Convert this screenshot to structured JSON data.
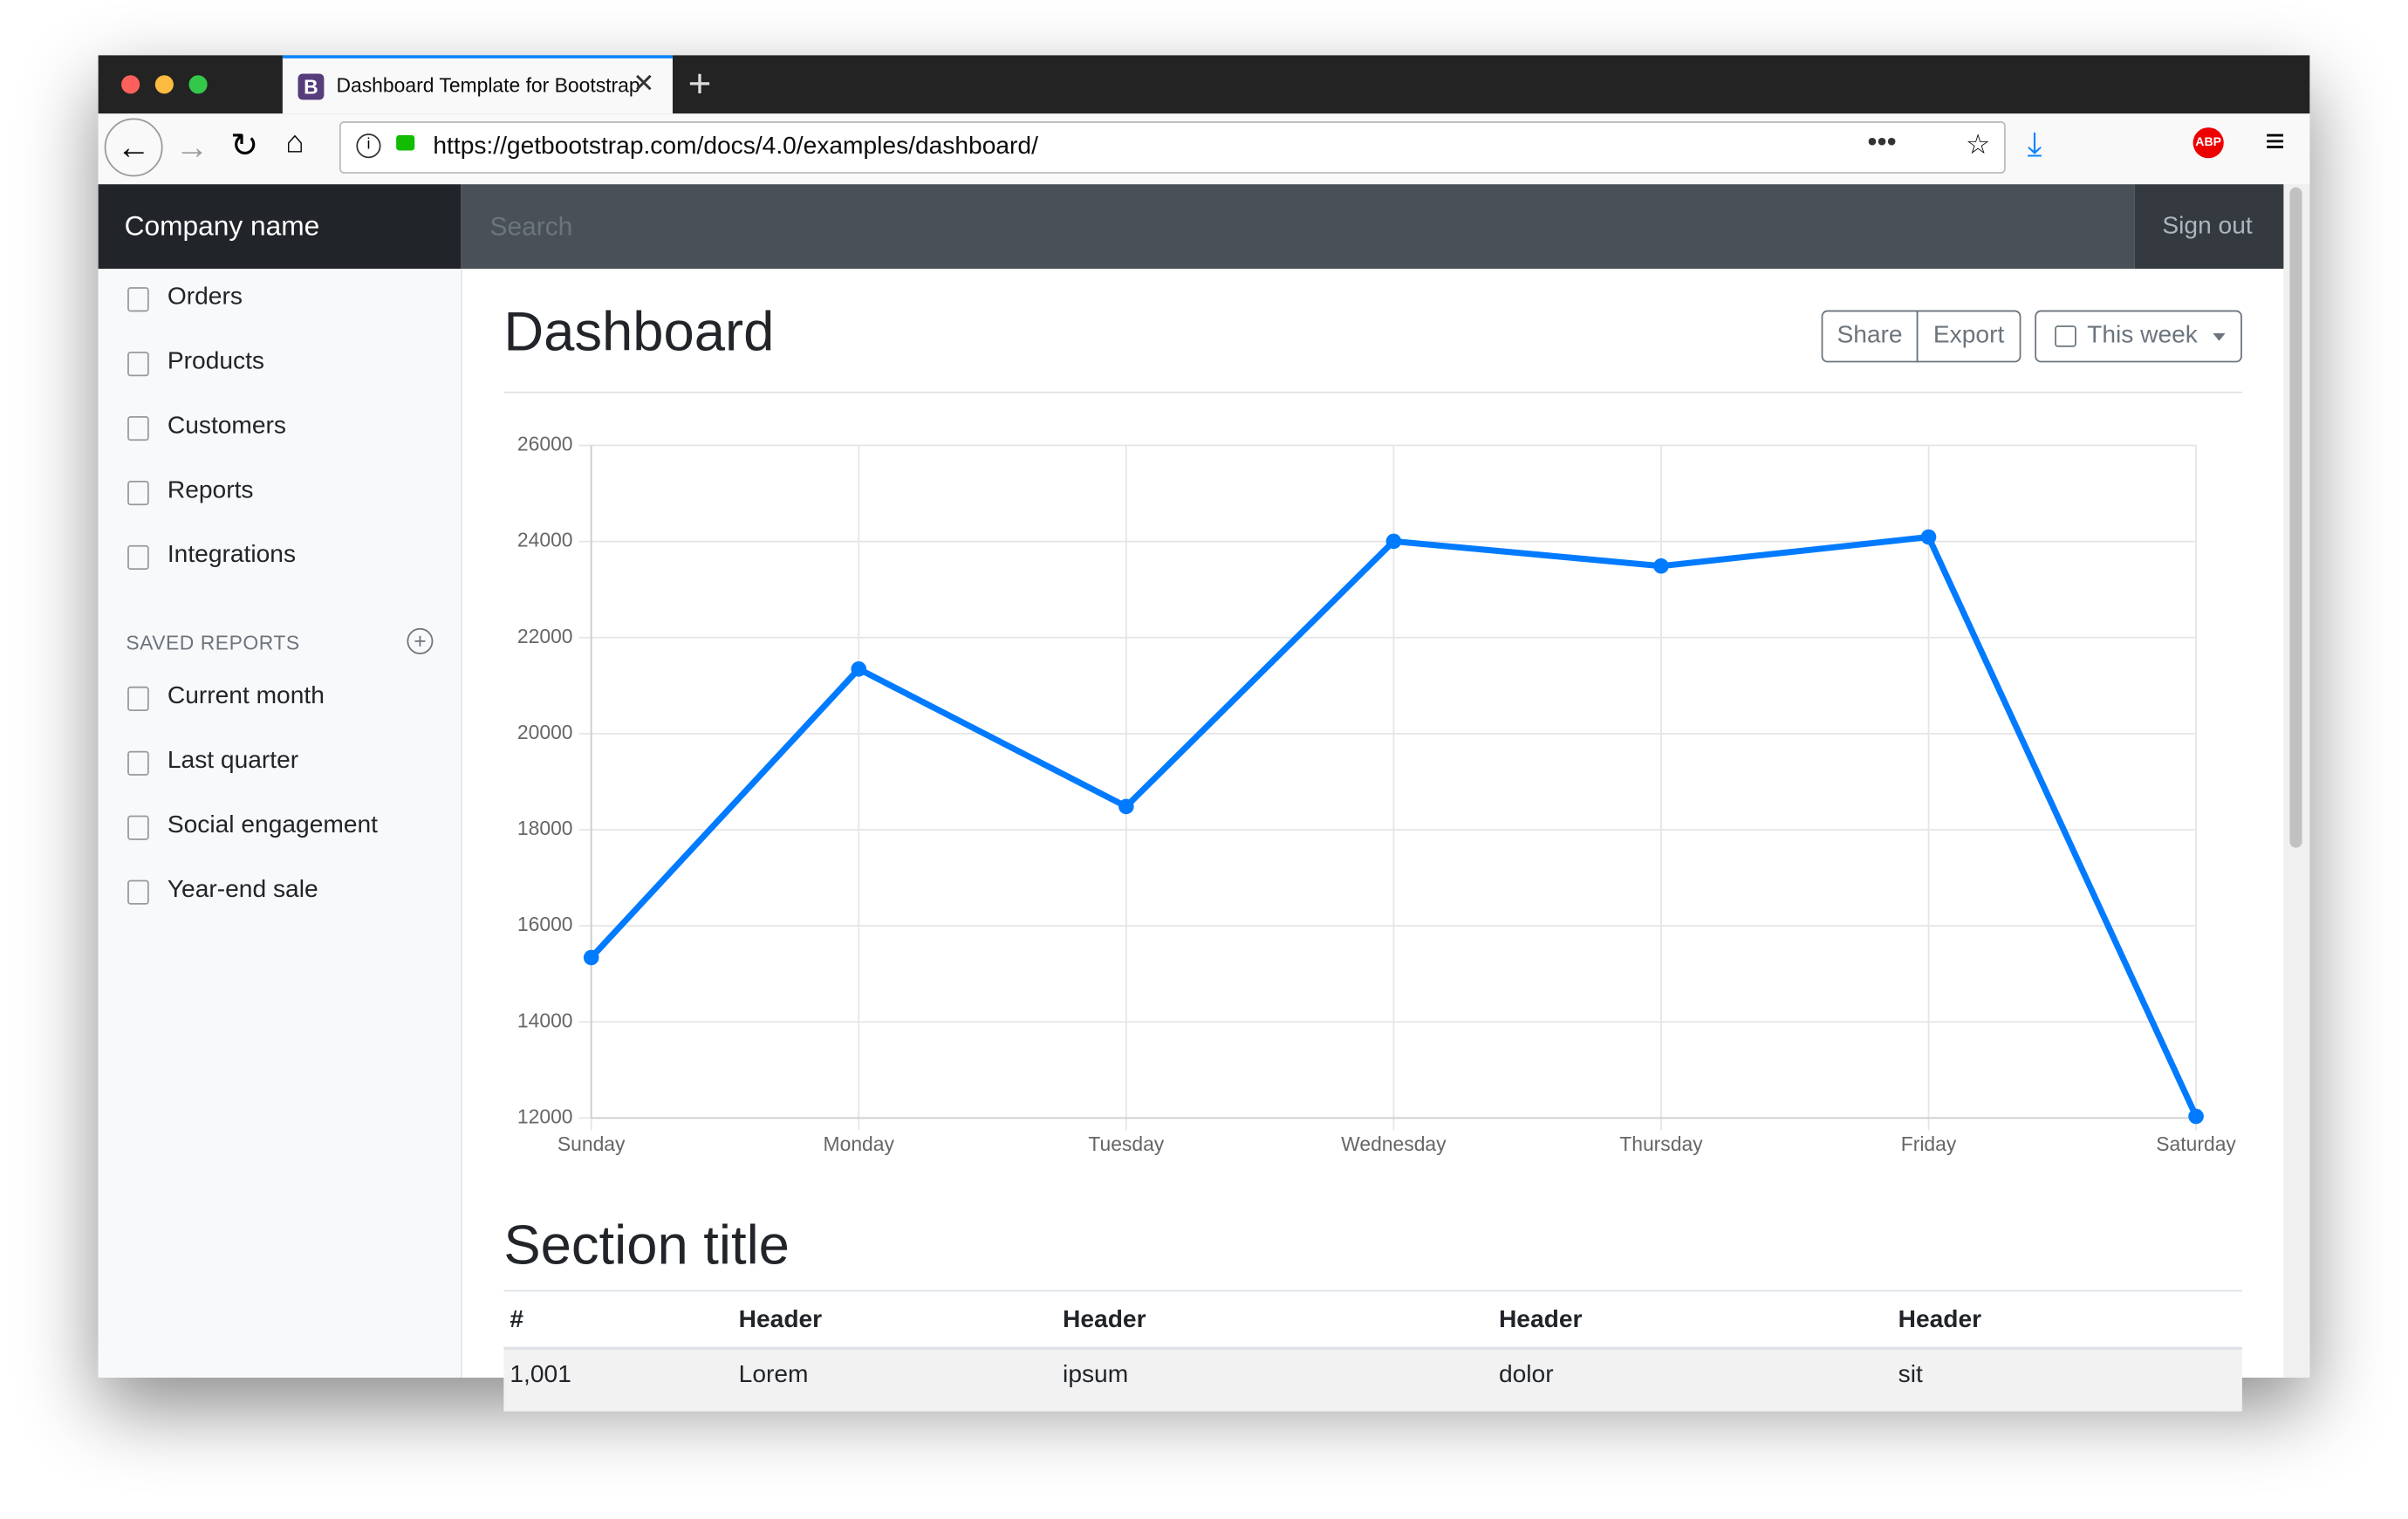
{
  "browser": {
    "tab_title": "Dashboard Template for Bootstrap",
    "url": "https://getbootstrap.com/docs/4.0/examples/dashboard/"
  },
  "navbar": {
    "brand": "Company name",
    "search_placeholder": "Search",
    "sign_out": "Sign out"
  },
  "sidebar": {
    "nav": [
      "Orders",
      "Products",
      "Customers",
      "Reports",
      "Integrations"
    ],
    "saved_reports_heading": "SAVED REPORTS",
    "saved_reports": [
      "Current month",
      "Last quarter",
      "Social engagement",
      "Year-end sale"
    ]
  },
  "header": {
    "title": "Dashboard",
    "buttons": [
      "Share",
      "Export"
    ],
    "dropdown": "This week"
  },
  "chart_data": {
    "type": "line",
    "categories": [
      "Sunday",
      "Monday",
      "Tuesday",
      "Wednesday",
      "Thursday",
      "Friday",
      "Saturday"
    ],
    "values": [
      15339,
      21345,
      18483,
      24003,
      23489,
      24092,
      12034
    ],
    "color": "#007bff",
    "ylim": [
      12000,
      26000
    ],
    "yticks": [
      12000,
      14000,
      16000,
      18000,
      20000,
      22000,
      24000,
      26000
    ],
    "grid": true
  },
  "section": {
    "title": "Section title",
    "table": {
      "headers": [
        "#",
        "Header",
        "Header",
        "Header",
        "Header"
      ],
      "rows": [
        [
          "1,001",
          "Lorem",
          "ipsum",
          "dolor",
          "sit"
        ]
      ]
    }
  }
}
